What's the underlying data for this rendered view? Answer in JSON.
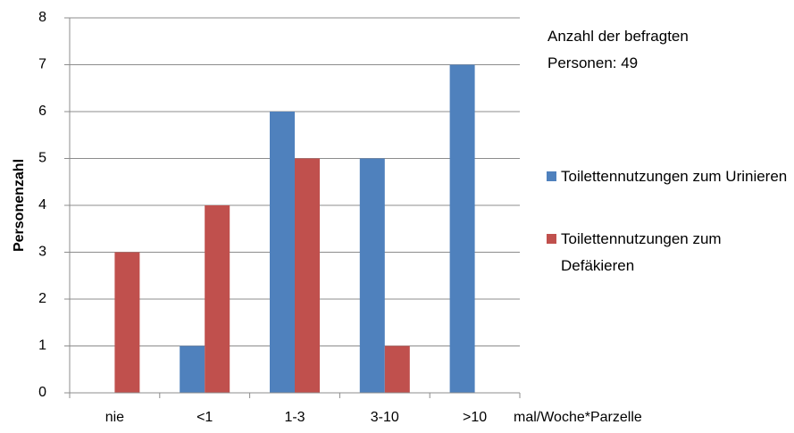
{
  "chart_data": {
    "type": "bar",
    "annotation": "Anzahl der befragten Personen: 49",
    "y_label": "Personenzahl",
    "x_label": "mal/Woche*Parzelle",
    "categories": [
      "nie",
      "<1",
      "1-3",
      "3-10",
      ">10"
    ],
    "series": [
      {
        "name": "Toilettennutzungen zum Urinieren",
        "color": "#4f81bd",
        "values": [
          0,
          1,
          6,
          5,
          7
        ]
      },
      {
        "name": "Toilettennutzungen zum Defäkieren",
        "color": "#c0504d",
        "values": [
          3,
          4,
          5,
          1,
          0
        ]
      }
    ],
    "ylim": [
      0,
      8
    ],
    "yticks": [
      0,
      1,
      2,
      3,
      4,
      5,
      6,
      7,
      8
    ],
    "grid": true
  }
}
